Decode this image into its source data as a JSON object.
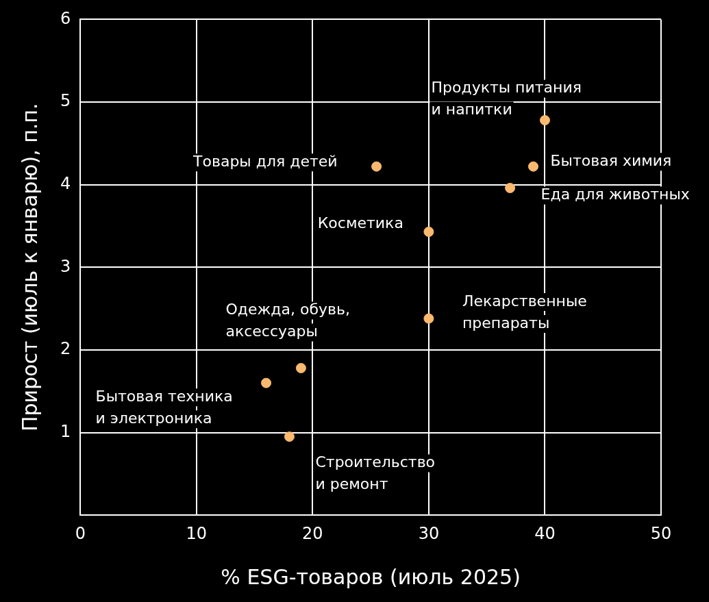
{
  "chart_data": {
    "type": "scatter",
    "xlabel": "% ESG-товаров (июль 2025)",
    "ylabel": "Прирост (июль к январю), п.п.",
    "x": [
      40,
      39,
      37,
      25.5,
      30,
      30,
      19,
      16,
      18
    ],
    "values": [
      4.78,
      4.22,
      3.96,
      4.22,
      3.43,
      2.38,
      1.78,
      1.6,
      0.95
    ],
    "color": "#f9b96e",
    "marker": "circle",
    "grid": true,
    "xlim": [
      0,
      50
    ],
    "xticks": [
      0,
      10,
      20,
      30,
      40,
      50
    ],
    "ylim": [
      0,
      6
    ],
    "yticks": [
      {
        "value": 0,
        "label": null
      },
      1,
      2,
      3,
      4,
      5,
      6
    ],
    "annotations": [
      {
        "text": "Продукты питания\nи напитки",
        "x": 40,
        "y": 4.78
      },
      {
        "text": "Бытовая химия",
        "x": 39,
        "y": 4.22
      },
      {
        "text": "Еда для животных",
        "x": 37,
        "y": 3.96
      },
      {
        "text": "Товары для детей",
        "x": 25.5,
        "y": 4.22
      },
      {
        "text": "Косметика",
        "x": 30,
        "y": 3.43
      },
      {
        "text": "Лекарственные\nпрепараты",
        "x": 30,
        "y": 2.38
      },
      {
        "text": "Одежда, обувь,\nаксессуары",
        "x": 19,
        "y": 1.78
      },
      {
        "text": "Бытовая техника\nи электроника",
        "x": 16,
        "y": 1.6
      },
      {
        "text": "Строительство\nи ремонт",
        "x": 18,
        "y": 0.95
      }
    ]
  }
}
